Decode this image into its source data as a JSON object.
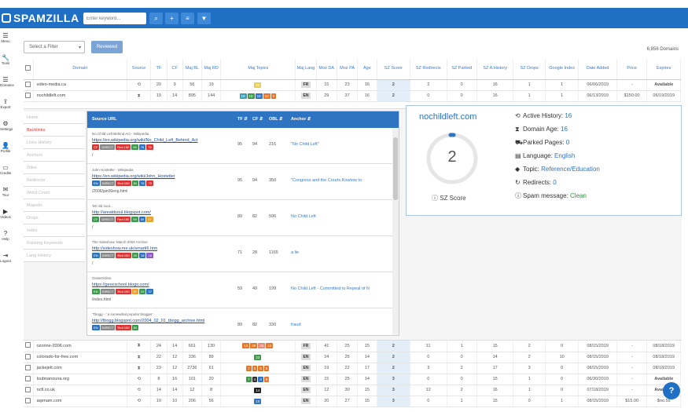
{
  "app": {
    "logo": "SPAMZILLA"
  },
  "toolbar": {
    "keyword_placeholder": "Enter keyword...",
    "search_icon": "search-icon",
    "add_icon": "plus-icon",
    "list_icon": "list-icon",
    "filter_icon": "filter-icon"
  },
  "sidebar": {
    "items": [
      {
        "label": "Menu",
        "icon": "menu-icon"
      },
      {
        "label": "Tools",
        "icon": "wrench-icon"
      },
      {
        "label": "Domains",
        "icon": "list-icon"
      },
      {
        "label": "Export",
        "icon": "export-icon"
      },
      {
        "label": "Settings",
        "icon": "settings-icon"
      },
      {
        "label": "Profile",
        "icon": "user-icon"
      },
      {
        "label": "Credits",
        "icon": "credits-icon"
      },
      {
        "label": "Tour",
        "icon": "tour-icon"
      },
      {
        "label": "Videos",
        "icon": "play-icon"
      },
      {
        "label": "Help",
        "icon": "help-icon"
      },
      {
        "label": "Logout",
        "icon": "logout-icon"
      }
    ]
  },
  "filters": {
    "select_value": "Select a Filter",
    "reviewed_label": "Reviewed",
    "domain_count": "6,856 Domains"
  },
  "columns": [
    "Domain",
    "Source",
    "TF",
    "CF",
    "Maj BL",
    "Maj RD",
    "Maj Topics",
    "Maj Lang",
    "Moz DA",
    "Moz PA",
    "Age",
    "SZ Score",
    "SZ Redirects",
    "SZ Parked",
    "SZ A.History",
    "SZ Drops",
    "Google Index",
    "Date Added",
    "Price",
    "Expires"
  ],
  "rows_top": [
    {
      "domain": "video-media.ca",
      "source": "⟲",
      "tf": "20",
      "cf": "9",
      "bl": "56",
      "rd": "19",
      "topics": [
        {
          "v": "20",
          "c": "#e8d050"
        }
      ],
      "lang": "FR",
      "da": "15",
      "pa": "23",
      "age": "16",
      "sz": "2",
      "redirects": "2",
      "parked": "0",
      "history": "16",
      "drops": "1",
      "gindex": "1",
      "date": "06/06/2019",
      "price": "-",
      "expires": "Available"
    },
    {
      "domain": "nochildleft.com",
      "source": "⧗",
      "tf": "19",
      "cf": "14",
      "bl": "895",
      "rd": "144",
      "topics": [
        {
          "v": "19",
          "c": "#3a9fb8"
        },
        {
          "v": "19",
          "c": "#3a9b4a"
        },
        {
          "v": "19",
          "c": "#2e74c3"
        },
        {
          "v": "10",
          "c": "#e8762a"
        },
        {
          "v": "5",
          "c": "#e8762a"
        }
      ],
      "lang": "EN",
      "da": "29",
      "pa": "37",
      "age": "16",
      "sz": "2",
      "redirects": "0",
      "parked": "0",
      "history": "16",
      "drops": "1",
      "gindex": "1",
      "date": "06/13/2019",
      "price": "$150.00",
      "expires": "06/19/2019"
    }
  ],
  "rows_bottom": [
    {
      "domain": "ozonne-2006.com",
      "source": "⧗",
      "tf": "24",
      "cf": "14",
      "bl": "661",
      "rd": "130",
      "topics": [
        {
          "v": "13",
          "c": "#e8762a"
        },
        {
          "v": "29",
          "c": "#e8762a"
        },
        {
          "v": "26",
          "c": "#e88a7a"
        },
        {
          "v": "13",
          "c": "#e8762a"
        }
      ],
      "lang": "FR",
      "da": "41",
      "pa": "25",
      "age": "15",
      "sz": "2",
      "redirects": "11",
      "parked": "1",
      "history": "15",
      "drops": "2",
      "gindex": "0",
      "date": "08/15/2019",
      "price": "-",
      "expires": "08/18/2019"
    },
    {
      "domain": "colorado-for-free.com",
      "source": "⧗",
      "tf": "22",
      "cf": "12",
      "bl": "336",
      "rd": "89",
      "topics": [
        {
          "v": "22",
          "c": "#3a9b4a"
        }
      ],
      "lang": "EN",
      "da": "24",
      "pa": "25",
      "age": "14",
      "sz": "2",
      "redirects": "0",
      "parked": "0",
      "history": "14",
      "drops": "2",
      "gindex": "10",
      "date": "08/15/2019",
      "price": "-",
      "expires": "08/18/2019"
    },
    {
      "domain": "jackejett.com",
      "source": "⧗",
      "tf": "23",
      "cf": "12",
      "bl": "2736",
      "rd": "61",
      "topics": [
        {
          "v": "7",
          "c": "#e8762a"
        },
        {
          "v": "5",
          "c": "#e8762a"
        },
        {
          "v": "5",
          "c": "#e8762a"
        },
        {
          "v": "5",
          "c": "#e8762a"
        }
      ],
      "lang": "EN",
      "da": "19",
      "pa": "22",
      "age": "17",
      "sz": "2",
      "redirects": "3",
      "parked": "2",
      "history": "17",
      "drops": "3",
      "gindex": "0",
      "date": "08/15/2019",
      "price": "-",
      "expires": "08/18/2019"
    },
    {
      "domain": "loubnanouna.org",
      "source": "⟲",
      "tf": "8",
      "cf": "16",
      "bl": "101",
      "rd": "20",
      "topics": [
        {
          "v": "7",
          "c": "#3a9b4a"
        },
        {
          "v": "4",
          "c": "#333"
        },
        {
          "v": "4",
          "c": "#2e74c3"
        },
        {
          "v": "6",
          "c": "#e8762a"
        }
      ],
      "lang": "EN",
      "da": "15",
      "pa": "25",
      "age": "14",
      "sz": "3",
      "redirects": "0",
      "parked": "0",
      "history": "15",
      "drops": "1",
      "gindex": "0",
      "date": "06/30/2019",
      "price": "-",
      "expires": "Available"
    },
    {
      "domain": "ncfl.co.uk",
      "source": "⟲",
      "tf": "14",
      "cf": "14",
      "bl": "12",
      "rd": "8",
      "topics": [
        {
          "v": "14",
          "c": "#222"
        }
      ],
      "lang": "EN",
      "da": "12",
      "pa": "30",
      "age": "15",
      "sz": "3",
      "redirects": "12",
      "parked": "2",
      "history": "16",
      "drops": "1",
      "gindex": "0",
      "date": "07/18/2019",
      "price": "-",
      "expires": "Available"
    },
    {
      "domain": "aqenam.com",
      "source": "⟲",
      "tf": "10",
      "cf": "10",
      "bl": "206",
      "rd": "56",
      "topics": [
        {
          "v": "10",
          "c": "#2e74c3"
        }
      ],
      "lang": "EN",
      "da": "20",
      "pa": "27",
      "age": "15",
      "sz": "3",
      "redirects": "0",
      "parked": "1",
      "history": "15",
      "drops": "0",
      "gindex": "1",
      "date": "08/15/2019",
      "price": "$15.00",
      "expires": "$no.59"
    }
  ],
  "panel_menu": [
    "Home",
    "Backlinks",
    "Links History",
    "Anchors",
    "Titles",
    "Redirects",
    "Word Count",
    "Majestic",
    "Drops",
    "Index",
    "Ranking Keywords",
    "Lang History"
  ],
  "backlinks": {
    "headers": [
      "Source URL",
      "TF ⇵",
      "CF ⇵",
      "OBL ⇵",
      "Anchor ⇵"
    ],
    "rows": [
      {
        "title": "No Child Left Behind Act - Wikipedia",
        "url": "https://en.wikipedia.org/wiki/No_Child_Left_Behind_Act",
        "tags": [
          {
            "t": "CF",
            "c": "#d33"
          },
          {
            "t": "DIRECT",
            "c": "#888"
          },
          {
            "t": "Red 150",
            "c": "#d33"
          },
          {
            "t": "80",
            "c": "#3a9b4a"
          },
          {
            "t": "78",
            "c": "#2e74c3"
          },
          {
            "t": "75",
            "c": "#d33"
          }
        ],
        "path": "/",
        "tf": "95",
        "cf": "94",
        "obl": "216",
        "anchor": "\"No Child Left\""
      },
      {
        "title": "John Hostetler - Wikipedia",
        "url": "https://en.wikipedia.org/wiki/John_Hostetler",
        "tags": [
          {
            "t": "EN",
            "c": "#2e74c3"
          },
          {
            "t": "DIRECT",
            "c": "#888"
          },
          {
            "t": "Red 150",
            "c": "#d33"
          },
          {
            "t": "80",
            "c": "#3a9b4a"
          },
          {
            "t": "78",
            "c": "#2e74c3"
          },
          {
            "t": "75",
            "c": "#d33"
          }
        ],
        "path": "/2006/jan06eng.html",
        "tf": "95",
        "cf": "94",
        "obl": "350",
        "anchor": "\"Congress and the Courts Kowtow to"
      },
      {
        "title": "'Mr old soul...",
        "url": "http://arealdsoul.blogspot.com/",
        "tags": [
          {
            "t": "CF",
            "c": "#3a9b4a"
          },
          {
            "t": "DIRECT",
            "c": "#888"
          },
          {
            "t": "Red 150",
            "c": "#d33"
          },
          {
            "t": "59",
            "c": "#3a9b4a"
          },
          {
            "t": "59",
            "c": "#2e74c3"
          },
          {
            "t": "57",
            "c": "#e8a02a"
          }
        ],
        "path": "/",
        "tf": "89",
        "cf": "82",
        "obl": "596",
        "anchor": "No Child Left"
      },
      {
        "title": "The Sideshow: March 2004 Archive",
        "url": "http://sideshow.me.uk/smarti6.htm",
        "tags": [
          {
            "t": "EN",
            "c": "#2e74c3"
          },
          {
            "t": "DIRECT",
            "c": "#888"
          },
          {
            "t": "Red 150",
            "c": "#d33"
          },
          {
            "t": "25",
            "c": "#3a9b4a"
          },
          {
            "t": "18",
            "c": "#2e74c3"
          },
          {
            "t": "18",
            "c": "#8a5ac8"
          }
        ],
        "path": "/",
        "tf": "71",
        "cf": "28",
        "obl": "1165",
        "anchor": "a lie"
      },
      {
        "title": "OssieOnline",
        "url": "https://geocschool.blogs.com/",
        "tags": [
          {
            "t": "EN",
            "c": "#3a9b4a"
          },
          {
            "t": "DIRECT",
            "c": "#888"
          },
          {
            "t": "Red 150",
            "c": "#d33"
          },
          {
            "t": "57",
            "c": "#e8a02a"
          },
          {
            "t": "29",
            "c": "#3a9b4a"
          },
          {
            "t": "37",
            "c": "#2e74c3"
          }
        ],
        "path": "/index.html",
        "tf": "59",
        "cf": "49",
        "obl": "199",
        "anchor": "No Child Left - Committed to Repeal of N"
      },
      {
        "title": "'Tbogg - ' a somewhat popular blogger'",
        "url": "http://tbogg.blogspot.com/2004_02_01_tbogg_archive.html",
        "tags": [
          {
            "t": "EN",
            "c": "#2e74c3"
          },
          {
            "t": "DIRECT",
            "c": "#888"
          },
          {
            "t": "Red 150",
            "c": "#d33"
          },
          {
            "t": "80",
            "c": "#3a9b4a"
          }
        ],
        "path": "",
        "tf": "89",
        "cf": "82",
        "obl": "330",
        "anchor": "fraud"
      }
    ]
  },
  "detail": {
    "domain": "nochildleft.com",
    "score": "2",
    "score_label": "SZ Score",
    "facts": [
      {
        "icon": "history-icon",
        "label": "Active History: ",
        "value": "16",
        "green": false
      },
      {
        "icon": "hourglass-icon",
        "label": "Domain Age: ",
        "value": "16",
        "green": false
      },
      {
        "icon": "car-icon",
        "label": "Parked Pages: ",
        "value": "0",
        "green": false
      },
      {
        "icon": "language-icon",
        "label": "Language: ",
        "value": "English",
        "green": false
      },
      {
        "icon": "tag-icon",
        "label": "Topic: ",
        "value": "Reference/Education",
        "green": false
      },
      {
        "icon": "redirect-icon",
        "label": "Redirects: ",
        "value": "0",
        "green": false
      },
      {
        "icon": "info-icon",
        "label": "Spam message: ",
        "value": "Clean",
        "green": true
      }
    ]
  },
  "help_label": "?"
}
